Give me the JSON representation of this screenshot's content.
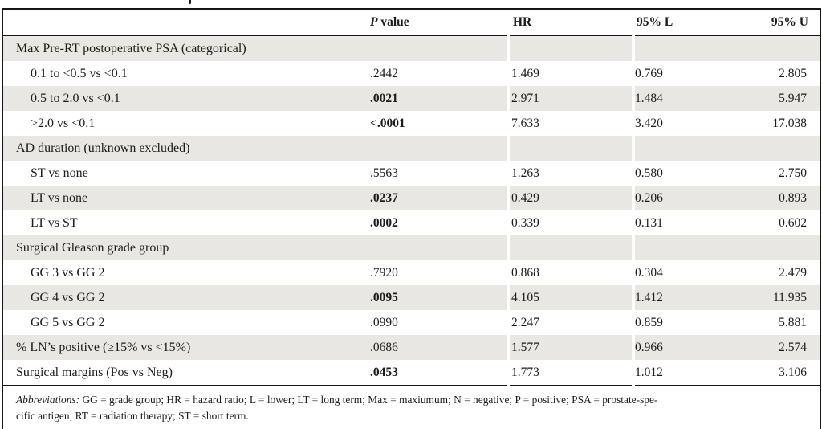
{
  "table": {
    "header": {
      "p_prefix": "P",
      "p_rest": " value",
      "hr": "HR",
      "ci_lower": "95% L",
      "ci_upper": "95% U"
    },
    "rows": [
      {
        "label": "Max Pre-RT postoperative PSA (categorical)",
        "p": "",
        "hr": "",
        "l": "",
        "u": ""
      },
      {
        "label": "0.1 to <0.5 vs <0.1",
        "p": ".2442",
        "hr": "1.469",
        "l": "0.769",
        "u": "2.805"
      },
      {
        "label": "0.5 to 2.0 vs <0.1",
        "p": ".0021",
        "hr": "2.971",
        "l": "1.484",
        "u": "5.947"
      },
      {
        "label": ">2.0 vs <0.1",
        "p": "<.0001",
        "hr": "7.633",
        "l": "3.420",
        "u": "17.038"
      },
      {
        "label": "AD duration (unknown excluded)",
        "p": "",
        "hr": "",
        "l": "",
        "u": ""
      },
      {
        "label": "ST vs none",
        "p": ".5563",
        "hr": "1.263",
        "l": "0.580",
        "u": "2.750"
      },
      {
        "label": "LT vs none",
        "p": ".0237",
        "hr": "0.429",
        "l": "0.206",
        "u": "0.893"
      },
      {
        "label": "LT vs ST",
        "p": ".0002",
        "hr": "0.339",
        "l": "0.131",
        "u": "0.602"
      },
      {
        "label": "Surgical Gleason grade group",
        "p": "",
        "hr": "",
        "l": "",
        "u": ""
      },
      {
        "label": "GG 3 vs GG 2",
        "p": ".7920",
        "hr": "0.868",
        "l": "0.304",
        "u": "2.479"
      },
      {
        "label": "GG 4 vs GG 2",
        "p": ".0095",
        "hr": "4.105",
        "l": "1.412",
        "u": "11.935"
      },
      {
        "label": "GG 5 vs GG 2",
        "p": ".0990",
        "hr": "2.247",
        "l": "0.859",
        "u": "5.881"
      },
      {
        "label": "% LN’s positive (≥15% vs <15%)",
        "p": ".0686",
        "hr": "1.577",
        "l": "0.966",
        "u": "2.574"
      },
      {
        "label": "Surgical margins (Pos vs Neg)",
        "p": ".0453",
        "hr": "1.773",
        "l": "1.012",
        "u": "3.106"
      }
    ],
    "footnote": {
      "label": "Abbreviations:",
      "line1": " GG = grade group; HR = hazard ratio; L = lower; LT = long term; Max = maxiumum; N = negative; P = positive; PSA = prostate-spe-",
      "line2": "cific antigen; RT = radiation therapy; ST = short term."
    },
    "colors": {
      "row_shading": "#e8e7e4",
      "border": "#161616",
      "text": "#1b1b1b"
    }
  }
}
